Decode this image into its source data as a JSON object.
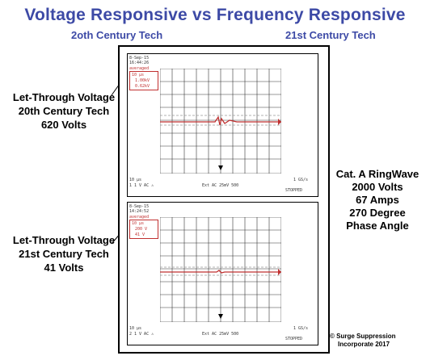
{
  "header": {
    "title": "Voltage Responsive vs Frequency Responsive",
    "left_sub": "2oth Century Tech",
    "right_sub": "21st Century Tech"
  },
  "labels": {
    "top": {
      "l1": "Let-Through Voltage",
      "l2": "20th Century Tech",
      "l3": "620 Volts"
    },
    "bottom": {
      "l1": "Let-Through Voltage",
      "l2": "21st Century Tech",
      "l3": "41 Volts"
    },
    "right": {
      "l1": "Cat. A RingWave",
      "l2": "2000 Volts",
      "l3": "67 Amps",
      "l4": "270 Degree",
      "l5": "Phase Angle"
    }
  },
  "copyright": {
    "l1": "© Surge Suppression",
    "l2": "Incorporate 2017"
  },
  "scopes": [
    {
      "date": "8-Sep-15",
      "time": "16:44:26",
      "mode": "averaged",
      "box1": "10 μs",
      "box2": "1.00kV",
      "box3": "0.62kV",
      "bottom_left": "10 μs",
      "ch_line": "1   1 V  AC  ⚠",
      "ext": "Ext AC 25mV 500",
      "rate": "1 GS/s",
      "state": "STOPPED"
    },
    {
      "date": "8-Sep-15",
      "time": "14:24:52",
      "mode": "averaged",
      "box1": "10 μs",
      "box2": "200 V",
      "box3": "41 V",
      "bottom_left": "10 μs",
      "ch_line": "2   1 V  AC  ⚠",
      "ext": "Ext AC 25mV 500",
      "rate": "1 GS/s",
      "state": "STOPPED"
    }
  ],
  "colors": {
    "title": "#3d4aa6",
    "trace": "#c03030",
    "grid": "#333333"
  }
}
